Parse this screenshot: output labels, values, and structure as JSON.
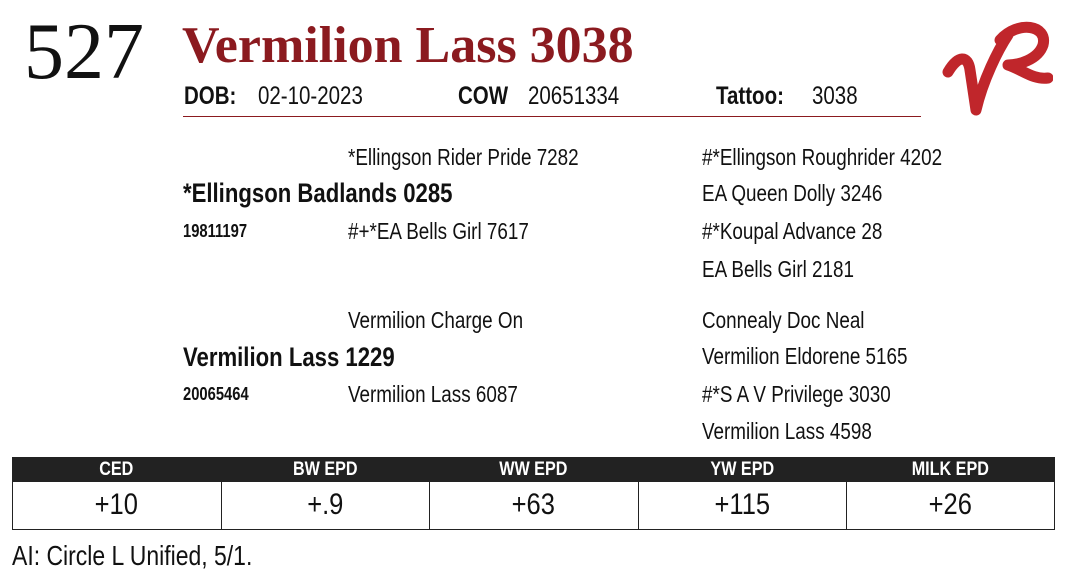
{
  "lot": "527",
  "name": "Vermilion Lass 3038",
  "info": {
    "dob_label": "DOB:",
    "dob": "02-10-2023",
    "cow_label": "COW",
    "cow": "20651334",
    "tattoo_label": "Tattoo:",
    "tattoo": "3038"
  },
  "pedigree": {
    "sire": {
      "name": "*Ellingson Badlands 0285",
      "reg": "19811197",
      "sire": "*Ellingson Rider Pride 7282",
      "dam": "#+*EA Bells Girl 7617"
    },
    "dam": {
      "name": "Vermilion Lass 1229",
      "reg": "20065464",
      "sire": "Vermilion Charge On",
      "dam": "Vermilion Lass 6087"
    },
    "great_grandparents": [
      "#*Ellingson Roughrider 4202",
      "EA Queen Dolly 3246",
      "#*Koupal Advance 28",
      "EA Bells Girl 2181",
      "Connealy Doc Neal",
      "Vermilion Eldorene 5165",
      "#*S A V Privilege 3030",
      "Vermilion Lass 4598"
    ]
  },
  "epd": {
    "headers": [
      "CED",
      "BW EPD",
      "WW EPD",
      "YW EPD",
      "MILK EPD"
    ],
    "values": [
      "+10",
      "+.9",
      "+63",
      "+115",
      "+26"
    ]
  },
  "note": "AI: Circle L Unified, 5/1."
}
